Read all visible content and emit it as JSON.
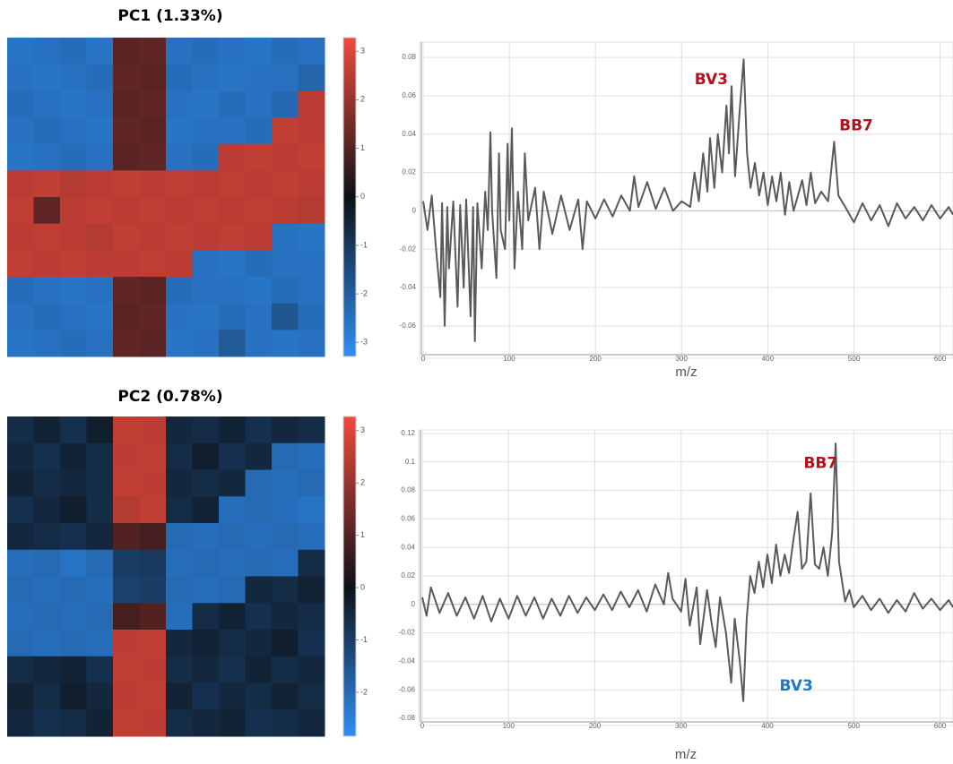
{
  "chart_data": [
    {
      "type": "heatmap",
      "title": "PC1 (1.33%)",
      "colormap": [
        "#2f8ff5",
        "#0d1117",
        "#f04a3c"
      ],
      "clim": [
        -3.29,
        3.28
      ],
      "cticks": [
        3,
        2,
        1,
        0,
        -1,
        -2,
        -3
      ],
      "values": [
        [
          -2.6,
          -2.5,
          -2.4,
          -2.6,
          1.1,
          1.2,
          -2.5,
          -2.4,
          -2.5,
          -2.6,
          -2.4,
          -2.5
        ],
        [
          -2.5,
          -2.6,
          -2.5,
          -2.4,
          1.2,
          1.1,
          -2.4,
          -2.5,
          -2.6,
          -2.5,
          -2.5,
          -2.2
        ],
        [
          -2.4,
          -2.5,
          -2.6,
          -2.5,
          1.1,
          1.2,
          -2.5,
          -2.6,
          -2.4,
          -2.5,
          -2.3,
          2.5
        ],
        [
          -2.5,
          -2.4,
          -2.5,
          -2.6,
          1.2,
          1.1,
          -2.6,
          -2.5,
          -2.5,
          -2.4,
          2.6,
          2.5
        ],
        [
          -2.6,
          -2.5,
          -2.4,
          -2.5,
          1.1,
          1.2,
          -2.5,
          -2.4,
          2.5,
          2.6,
          2.5,
          2.6
        ],
        [
          2.5,
          2.6,
          2.4,
          2.5,
          2.6,
          2.5,
          2.6,
          2.5,
          2.6,
          2.5,
          2.6,
          2.5
        ],
        [
          2.6,
          1.2,
          2.5,
          2.6,
          2.5,
          2.6,
          2.5,
          2.6,
          2.5,
          2.6,
          2.5,
          2.4
        ],
        [
          2.5,
          2.6,
          2.5,
          2.4,
          2.6,
          2.5,
          2.6,
          2.5,
          2.6,
          2.5,
          -2.5,
          -2.6
        ],
        [
          2.6,
          2.5,
          2.6,
          2.5,
          2.5,
          2.6,
          2.5,
          -2.5,
          -2.6,
          -2.4,
          -2.5,
          -2.5
        ],
        [
          -2.4,
          -2.5,
          -2.6,
          -2.5,
          1.2,
          1.1,
          -2.4,
          -2.5,
          -2.5,
          -2.6,
          -2.4,
          -2.5
        ],
        [
          -2.5,
          -2.4,
          -2.5,
          -2.6,
          1.1,
          1.2,
          -2.5,
          -2.6,
          -2.4,
          -2.5,
          -1.8,
          -2.4
        ],
        [
          -2.6,
          -2.5,
          -2.4,
          -2.5,
          1.2,
          1.1,
          -2.6,
          -2.5,
          -1.9,
          -2.5,
          -2.6,
          -2.5
        ]
      ]
    },
    {
      "type": "line",
      "xlabel": "m/z",
      "grid": true,
      "xlim": [
        0,
        615
      ],
      "xticks": [
        0,
        100,
        200,
        300,
        400,
        500,
        600
      ],
      "ylim": [
        -0.075,
        0.088
      ],
      "yticks": [
        0.08,
        0.06,
        0.04,
        0.02,
        0,
        -0.02,
        -0.04,
        -0.06
      ],
      "x": [
        0,
        5,
        10,
        15,
        20,
        22,
        25,
        28,
        30,
        35,
        40,
        43,
        47,
        50,
        55,
        58,
        60,
        63,
        68,
        72,
        75,
        78,
        80,
        85,
        88,
        90,
        95,
        98,
        100,
        103,
        106,
        110,
        115,
        118,
        122,
        130,
        135,
        140,
        150,
        160,
        170,
        180,
        185,
        190,
        200,
        210,
        220,
        230,
        240,
        245,
        250,
        260,
        270,
        280,
        290,
        300,
        310,
        315,
        320,
        325,
        330,
        333,
        338,
        342,
        347,
        352,
        355,
        358,
        362,
        367,
        372,
        376,
        380,
        385,
        390,
        395,
        400,
        405,
        410,
        415,
        420,
        425,
        430,
        440,
        445,
        450,
        455,
        462,
        470,
        477,
        482,
        490,
        500,
        510,
        520,
        530,
        540,
        550,
        560,
        570,
        580,
        590,
        600,
        610,
        615
      ],
      "series": [
        {
          "color": "#5a5a5a",
          "values": [
            0.005,
            -0.01,
            0.008,
            -0.02,
            -0.045,
            0.004,
            -0.06,
            0.002,
            -0.03,
            0.005,
            -0.05,
            0.003,
            -0.04,
            0.006,
            -0.055,
            0.002,
            -0.068,
            0.004,
            -0.03,
            0.01,
            -0.01,
            0.041,
            0.0,
            -0.035,
            0.03,
            -0.01,
            -0.02,
            0.035,
            -0.005,
            0.043,
            -0.03,
            0.01,
            -0.02,
            0.03,
            -0.005,
            0.012,
            -0.02,
            0.01,
            -0.012,
            0.008,
            -0.01,
            0.006,
            -0.02,
            0.005,
            -0.004,
            0.006,
            -0.003,
            0.008,
            0.0,
            0.018,
            0.002,
            0.015,
            0.001,
            0.012,
            0.0,
            0.005,
            0.002,
            0.02,
            0.005,
            0.03,
            0.01,
            0.038,
            0.012,
            0.04,
            0.02,
            0.055,
            0.03,
            0.065,
            0.018,
            0.05,
            0.079,
            0.03,
            0.012,
            0.025,
            0.008,
            0.02,
            0.003,
            0.018,
            0.005,
            0.02,
            -0.002,
            0.015,
            0.0,
            0.016,
            0.003,
            0.02,
            0.004,
            0.01,
            0.005,
            0.036,
            0.008,
            0.002,
            -0.006,
            0.004,
            -0.005,
            0.003,
            -0.008,
            0.004,
            -0.004,
            0.002,
            -0.005,
            0.003,
            -0.004,
            0.002,
            -0.002
          ]
        }
      ],
      "annotations": [
        {
          "text": "BV3",
          "x": 315,
          "y": 0.0685,
          "color": "#b3121b"
        },
        {
          "text": "BB7",
          "x": 483,
          "y": 0.0444,
          "color": "#b3121b"
        }
      ]
    },
    {
      "type": "heatmap",
      "title": "PC2 (0.78%)",
      "colormap": [
        "#2f8ff5",
        "#0d1117",
        "#f04a3c"
      ],
      "clim": [
        -2.84,
        3.27
      ],
      "cticks": [
        3,
        2,
        1,
        0,
        -1,
        -2
      ],
      "values": [
        [
          -0.6,
          -0.4,
          -0.7,
          -0.3,
          2.6,
          2.5,
          -0.5,
          -0.6,
          -0.4,
          -0.7,
          -0.5,
          -0.6
        ],
        [
          -0.5,
          -0.7,
          -0.4,
          -0.6,
          2.5,
          2.6,
          -0.6,
          -0.3,
          -0.7,
          -0.5,
          -2.0,
          -2.1
        ],
        [
          -0.4,
          -0.6,
          -0.5,
          -0.6,
          2.6,
          2.5,
          -0.5,
          -0.6,
          -0.5,
          -2.0,
          -2.1,
          -2.0
        ],
        [
          -0.7,
          -0.5,
          -0.3,
          -0.6,
          2.4,
          2.6,
          -0.6,
          -0.4,
          -2.1,
          -2.0,
          -2.1,
          -2.2
        ],
        [
          -0.5,
          -0.6,
          -0.7,
          -0.5,
          1.0,
          0.8,
          -2.0,
          -2.1,
          -2.0,
          -2.1,
          -2.0,
          -2.1
        ],
        [
          -2.1,
          -2.0,
          -2.2,
          -2.0,
          -1.0,
          -0.9,
          -2.1,
          -2.0,
          -2.1,
          -2.0,
          -2.1,
          -0.6
        ],
        [
          -2.0,
          -2.1,
          -2.0,
          -2.1,
          -1.1,
          -1.0,
          -2.0,
          -2.1,
          -2.0,
          -0.5,
          -0.6,
          -0.4
        ],
        [
          -2.1,
          -2.0,
          -2.1,
          -2.0,
          0.8,
          1.0,
          -2.1,
          -0.6,
          -0.4,
          -0.7,
          -0.5,
          -0.6
        ],
        [
          -2.0,
          -2.1,
          -2.0,
          -2.1,
          2.5,
          2.6,
          -0.5,
          -0.4,
          -0.6,
          -0.5,
          -0.3,
          -0.7
        ],
        [
          -0.6,
          -0.5,
          -0.4,
          -0.7,
          2.6,
          2.5,
          -0.6,
          -0.5,
          -0.7,
          -0.4,
          -0.6,
          -0.5
        ],
        [
          -0.4,
          -0.6,
          -0.3,
          -0.5,
          2.5,
          2.6,
          -0.4,
          -0.7,
          -0.5,
          -0.6,
          -0.4,
          -0.6
        ],
        [
          -0.5,
          -0.7,
          -0.6,
          -0.4,
          2.6,
          2.5,
          -0.6,
          -0.5,
          -0.4,
          -0.7,
          -0.6,
          -0.5
        ]
      ]
    },
    {
      "type": "line",
      "xlabel": "m/z",
      "grid": true,
      "xlim": [
        0,
        615
      ],
      "xticks": [
        0,
        100,
        200,
        300,
        400,
        500,
        600
      ],
      "ylim": [
        -0.0825,
        0.1225
      ],
      "yticks": [
        0.12,
        0.1,
        0.08,
        0.06,
        0.04,
        0.02,
        0,
        -0.02,
        -0.04,
        -0.06,
        -0.08
      ],
      "x": [
        0,
        5,
        10,
        20,
        30,
        40,
        50,
        60,
        70,
        80,
        90,
        100,
        110,
        120,
        130,
        140,
        150,
        160,
        170,
        180,
        190,
        200,
        210,
        220,
        230,
        240,
        250,
        260,
        270,
        280,
        285,
        290,
        300,
        305,
        310,
        318,
        322,
        330,
        335,
        340,
        345,
        352,
        358,
        362,
        368,
        372,
        376,
        380,
        385,
        390,
        395,
        400,
        405,
        410,
        415,
        420,
        425,
        430,
        435,
        440,
        445,
        450,
        455,
        460,
        465,
        470,
        475,
        479,
        483,
        490,
        495,
        500,
        510,
        520,
        530,
        540,
        550,
        560,
        570,
        580,
        590,
        600,
        610,
        615
      ],
      "series": [
        {
          "color": "#5a5a5a",
          "values": [
            0.005,
            -0.008,
            0.012,
            -0.006,
            0.008,
            -0.008,
            0.005,
            -0.01,
            0.006,
            -0.012,
            0.004,
            -0.01,
            0.006,
            -0.008,
            0.005,
            -0.01,
            0.004,
            -0.008,
            0.006,
            -0.006,
            0.005,
            -0.004,
            0.007,
            -0.004,
            0.009,
            -0.002,
            0.01,
            -0.005,
            0.014,
            0.0,
            0.022,
            0.004,
            -0.005,
            0.018,
            -0.015,
            0.012,
            -0.028,
            0.01,
            -0.012,
            -0.03,
            0.005,
            -0.02,
            -0.055,
            -0.01,
            -0.04,
            -0.068,
            -0.01,
            0.02,
            0.008,
            0.03,
            0.012,
            0.035,
            0.015,
            0.042,
            0.02,
            0.035,
            0.022,
            0.045,
            0.065,
            0.025,
            0.03,
            0.078,
            0.028,
            0.025,
            0.04,
            0.02,
            0.05,
            0.113,
            0.03,
            0.002,
            0.01,
            -0.002,
            0.006,
            -0.004,
            0.004,
            -0.006,
            0.003,
            -0.005,
            0.008,
            -0.003,
            0.004,
            -0.004,
            0.003,
            -0.002
          ]
        }
      ],
      "annotations": [
        {
          "text": "BB7",
          "x": 442,
          "y": 0.0988,
          "color": "#b3121b"
        },
        {
          "text": "BV3",
          "x": 414,
          "y": -0.0575,
          "color": "#1f78c1"
        }
      ]
    }
  ]
}
